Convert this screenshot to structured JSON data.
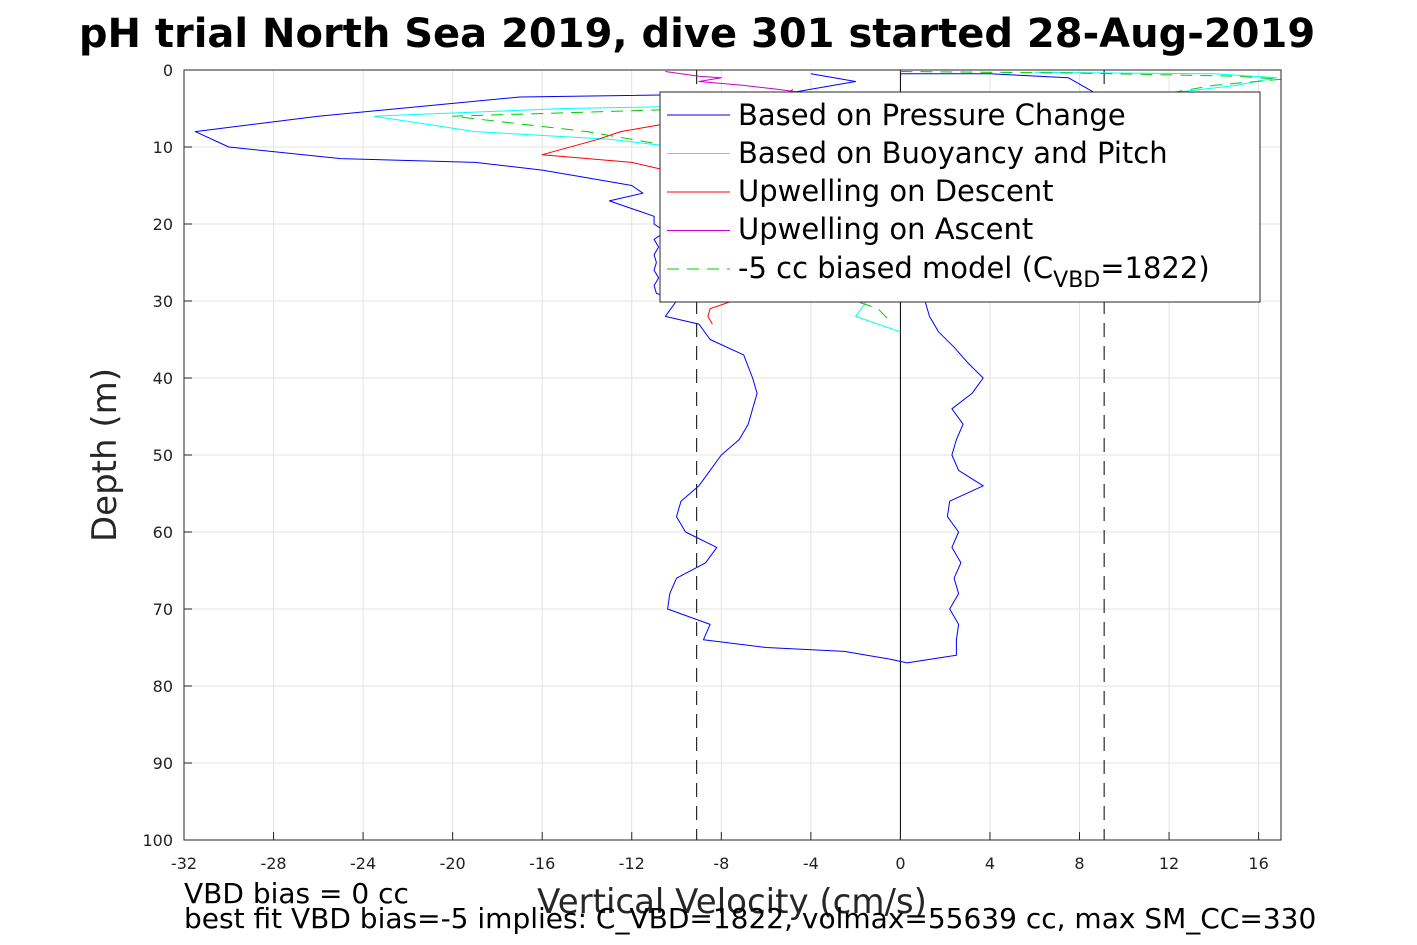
{
  "chart_data": {
    "type": "line",
    "title": "pH trial North Sea 2019, dive 301 started 28-Aug-2019",
    "xlabel": "Vertical Velocity (cm/s)",
    "ylabel": "Depth (m)",
    "xlim": [
      -32,
      17
    ],
    "ylim": [
      0,
      100
    ],
    "y_reversed": true,
    "x_ticks": [
      "-32",
      "-28",
      "-24",
      "-20",
      "-16",
      "-12",
      "-8",
      "-4",
      "0",
      "4",
      "8",
      "12",
      "16"
    ],
    "x_tick_values": [
      -32,
      -28,
      -24,
      -20,
      -16,
      -12,
      -8,
      -4,
      0,
      4,
      8,
      12,
      16
    ],
    "y_ticks": [
      "0",
      "10",
      "20",
      "30",
      "40",
      "50",
      "60",
      "70",
      "80",
      "90",
      "100"
    ],
    "y_tick_values": [
      0,
      10,
      20,
      30,
      40,
      50,
      60,
      70,
      80,
      90,
      100
    ],
    "grid": true,
    "legend_position": "top-right",
    "legend": {
      "entries": [
        "Based on Pressure Change",
        "Based on Buoyancy and Pitch",
        "Upwelling on Descent",
        "Upwelling on Ascent"
      ],
      "model_prefix": "-5 cc biased model (C",
      "model_sub": "VBD",
      "model_suffix": "=1822)"
    },
    "reference_lines": [
      {
        "x": -9.1,
        "style": "dashed",
        "color": "#000000"
      },
      {
        "x": 0,
        "style": "solid",
        "color": "#000000"
      },
      {
        "x": 9.1,
        "style": "dashed",
        "color": "#000000"
      }
    ],
    "series": [
      {
        "name": "Based on Pressure Change",
        "color": "#0000ff",
        "style": "solid",
        "points": [
          [
            -4,
            0.5
          ],
          [
            -2,
            1.5
          ],
          [
            -5,
            3
          ],
          [
            -17,
            3.5
          ],
          [
            -26,
            6
          ],
          [
            -31.5,
            8
          ],
          [
            -30,
            10
          ],
          [
            -25,
            11.5
          ],
          [
            -19,
            12
          ],
          [
            -16,
            13
          ],
          [
            -14,
            14
          ],
          [
            -12,
            15
          ],
          [
            -11.5,
            16
          ],
          [
            -13,
            17
          ],
          [
            -12,
            18
          ],
          [
            -11,
            19
          ],
          [
            -11,
            20
          ],
          [
            -10.5,
            21
          ],
          [
            -11,
            22
          ],
          [
            -10.8,
            23
          ],
          [
            -11,
            24
          ],
          [
            -10.9,
            25
          ],
          [
            -11,
            26
          ],
          [
            -10.8,
            27
          ],
          [
            -11,
            28
          ],
          [
            -10.9,
            29
          ],
          [
            -10,
            30
          ],
          [
            -10.5,
            32
          ],
          [
            -9,
            33
          ],
          [
            -8.5,
            35
          ],
          [
            -7,
            37
          ],
          [
            -6.6,
            40
          ],
          [
            -6.4,
            42
          ],
          [
            -6.6,
            44
          ],
          [
            -6.8,
            46
          ],
          [
            -7.2,
            48
          ],
          [
            -8,
            50
          ],
          [
            -8.5,
            52
          ],
          [
            -9,
            54
          ],
          [
            -9.8,
            56
          ],
          [
            -10,
            58
          ],
          [
            -9.6,
            60
          ],
          [
            -8.2,
            62
          ],
          [
            -8.7,
            64
          ],
          [
            -10,
            66
          ],
          [
            -10.3,
            68
          ],
          [
            -10.4,
            70
          ],
          [
            -8.5,
            72
          ],
          [
            -8.8,
            74
          ],
          [
            -6,
            75
          ],
          [
            -2.5,
            75.5
          ],
          [
            -1.5,
            76
          ],
          [
            -0.5,
            76.5
          ],
          [
            0.3,
            77
          ],
          [
            1.4,
            76.5
          ],
          [
            2.5,
            76
          ],
          [
            2.5,
            74
          ],
          [
            2.6,
            72
          ],
          [
            2.2,
            70
          ],
          [
            2.6,
            68
          ],
          [
            2.4,
            66
          ],
          [
            2.7,
            64
          ],
          [
            2.3,
            62
          ],
          [
            2.6,
            60
          ],
          [
            2.1,
            58
          ],
          [
            2.2,
            56
          ],
          [
            3.7,
            54
          ],
          [
            2.6,
            52
          ],
          [
            2.3,
            50
          ],
          [
            2.5,
            48
          ],
          [
            2.8,
            46
          ],
          [
            2.3,
            44
          ],
          [
            3.2,
            42
          ],
          [
            3.7,
            40
          ],
          [
            3,
            38
          ],
          [
            2.4,
            36
          ],
          [
            1.7,
            34
          ],
          [
            1.3,
            32
          ],
          [
            1.1,
            30
          ],
          [
            9,
            8
          ],
          [
            8.9,
            5
          ],
          [
            8.7,
            3
          ],
          [
            7.5,
            1
          ],
          [
            4,
            0.5
          ],
          [
            0,
            0.5
          ]
        ]
      },
      {
        "name": "Based on Buoyancy and Pitch",
        "color": "#00ffff",
        "style": "solid",
        "points": [
          [
            6,
            0.3
          ],
          [
            14,
            0.5
          ],
          [
            16.8,
            1
          ],
          [
            15,
            2
          ],
          [
            12,
            3
          ],
          [
            7,
            4
          ],
          [
            -5,
            4.5
          ],
          [
            -15,
            5
          ],
          [
            -23.5,
            6
          ],
          [
            -19,
            8
          ],
          [
            -13,
            9
          ],
          [
            -10,
            10
          ],
          [
            -8,
            11
          ],
          [
            -7,
            12
          ],
          [
            -1.5,
            30
          ],
          [
            -2,
            32
          ],
          [
            -1,
            33
          ],
          [
            0,
            34
          ]
        ]
      },
      {
        "name": "Upwelling on Descent",
        "color": "#ff0000",
        "style": "solid",
        "points": [
          [
            -4.8,
            2.5
          ],
          [
            -5.5,
            4
          ],
          [
            -7,
            5
          ],
          [
            -10.5,
            7
          ],
          [
            -12.5,
            8
          ],
          [
            -13.5,
            9
          ],
          [
            -16,
            11
          ],
          [
            -12,
            12
          ],
          [
            -10.5,
            13
          ],
          [
            -7.5,
            30
          ],
          [
            -8.5,
            31
          ],
          [
            -8.6,
            32
          ],
          [
            -8.4,
            33
          ]
        ]
      },
      {
        "name": "Upwelling on Ascent",
        "color": "#cc00cc",
        "style": "solid",
        "points": [
          [
            -10.5,
            0.2
          ],
          [
            -9,
            0.8
          ],
          [
            -8,
            1
          ],
          [
            -9,
            1.5
          ],
          [
            -7,
            2
          ],
          [
            -5.5,
            2.5
          ],
          [
            -4.2,
            3
          ]
        ]
      },
      {
        "name": "-5 cc biased model (C_VBD=1822)",
        "color": "#00cc00",
        "style": "dashed",
        "points": [
          [
            0,
            0.2
          ],
          [
            8,
            0.4
          ],
          [
            15,
            0.8
          ],
          [
            17,
            1.2
          ],
          [
            14,
            2
          ],
          [
            12,
            3
          ],
          [
            8,
            4
          ],
          [
            -4,
            4.5
          ],
          [
            -12,
            5.3
          ],
          [
            -20,
            6
          ],
          [
            -17,
            7
          ],
          [
            -14,
            8
          ],
          [
            -11,
            9.5
          ],
          [
            -8,
            10.5
          ],
          [
            -6,
            11.5
          ],
          [
            -2,
            30
          ],
          [
            -1,
            31
          ],
          [
            -0.5,
            32.5
          ]
        ]
      }
    ],
    "annotations": [
      "VBD bias = 0 cc",
      "best fit VBD bias=-5 implies: C_VBD=1822, volmax=55639 cc, max SM_CC=330"
    ]
  }
}
